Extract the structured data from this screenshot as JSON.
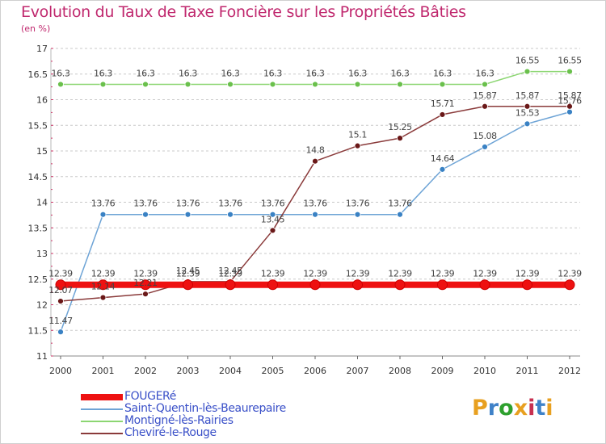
{
  "title": "Evolution du Taux de Taxe Foncière sur les Propriétés Bâties",
  "unit_label": "(en %)",
  "logo_text": "Proxiti",
  "logo_colors": [
    "#e8a020",
    "#3f82c8",
    "#2ea02e",
    "#e8a020",
    "#c83050",
    "#3f82c8",
    "#e8a020"
  ],
  "chart_data": {
    "type": "line",
    "x": [
      2000,
      2001,
      2002,
      2003,
      2004,
      2005,
      2006,
      2007,
      2008,
      2009,
      2010,
      2011,
      2012
    ],
    "x_tick_labels": [
      "2000",
      "2001",
      "2002",
      "2003",
      "2004",
      "2005",
      "2006",
      "2007",
      "2008",
      "2009",
      "2010",
      "2011",
      "2012"
    ],
    "ylim": [
      11,
      17
    ],
    "y_ticks": [
      11,
      11.5,
      12,
      12.5,
      13,
      13.5,
      14,
      14.5,
      15,
      15.5,
      16,
      16.5,
      17
    ],
    "y_tick_labels": [
      "11",
      "11.5",
      "12",
      "12.5",
      "13",
      "13.5",
      "14",
      "14.5",
      "15",
      "15.5",
      "16",
      "16.5",
      "17"
    ],
    "grid": "horizontal dashed",
    "legend_position": "bottom-left",
    "series": [
      {
        "name": "FOUGERé",
        "color": "#ee1111",
        "values": [
          12.39,
          12.39,
          12.39,
          12.39,
          12.39,
          12.39,
          12.39,
          12.39,
          12.39,
          12.39,
          12.39,
          12.39,
          12.39
        ],
        "labels": [
          "12.39",
          "12.39",
          "12.39",
          "12.39",
          "12.39",
          "12.39",
          "12.39",
          "12.39",
          "12.39",
          "12.39",
          "12.39",
          "12.39",
          "12.39"
        ]
      },
      {
        "name": "Saint-Quentin-lès-Beaurepaire",
        "color": "#6ea4d6",
        "marker_color": "#3a82c4",
        "values": [
          11.47,
          13.76,
          13.76,
          13.76,
          13.76,
          13.76,
          13.76,
          13.76,
          13.76,
          14.64,
          15.08,
          15.53,
          15.76
        ],
        "labels": [
          "11.47",
          "13.76",
          "13.76",
          "13.76",
          "13.76",
          "13.76",
          "13.76",
          "13.76",
          "13.76",
          "14.64",
          "15.08",
          "15.53",
          "15.76"
        ]
      },
      {
        "name": "Montigné-lès-Rairies",
        "color": "#8cd672",
        "marker_color": "#6ac04c",
        "values": [
          16.3,
          16.3,
          16.3,
          16.3,
          16.3,
          16.3,
          16.3,
          16.3,
          16.3,
          16.3,
          16.3,
          16.55,
          16.55
        ],
        "labels": [
          "16.3",
          "16.3",
          "16.3",
          "16.3",
          "16.3",
          "16.3",
          "16.3",
          "16.3",
          "16.3",
          "16.3",
          "16.3",
          "16.55",
          "16.55"
        ]
      },
      {
        "name": "Cheviré-le-Rouge",
        "color": "#8a3a3a",
        "marker_color": "#6a1818",
        "values": [
          12.07,
          12.14,
          12.21,
          12.45,
          12.45,
          13.45,
          14.8,
          15.1,
          15.25,
          15.71,
          15.87,
          15.87,
          15.87
        ],
        "labels": [
          "12.07",
          "12.14",
          "12.21",
          "12.45",
          "12.45",
          "13.45",
          "14.8",
          "15.1",
          "15.25",
          "15.71",
          "15.87",
          "15.87",
          "15.87"
        ]
      }
    ]
  }
}
